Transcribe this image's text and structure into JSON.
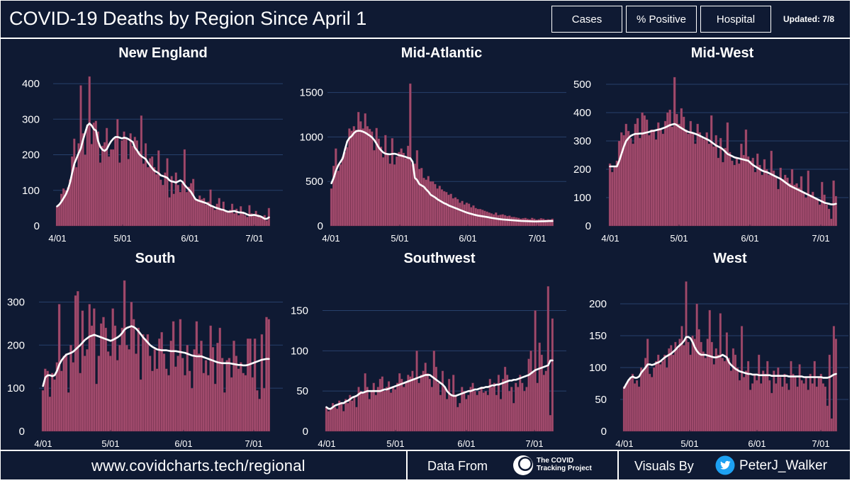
{
  "header": {
    "title": "COVID-19 Deaths by Region Since April 1",
    "nav": [
      "Cases",
      "% Positive",
      "Hospital"
    ],
    "updated": "Updated: 7/8"
  },
  "footer": {
    "url": "www.covidcharts.tech/regional",
    "data_from_label": "Data From",
    "source_logo_text": [
      "The COVID",
      "Tracking Project"
    ],
    "visuals_by_label": "Visuals By",
    "handle": "PeterJ_Walker"
  },
  "colors": {
    "background": "#0f1a33",
    "bar": "#a04a6c",
    "bar_stroke": "#6c2c48",
    "avg_line": "#ffffff",
    "grid": "#27406b",
    "text": "#ffffff",
    "twitter": "#1da1f2"
  },
  "chart_data": [
    {
      "type": "bar",
      "title": "New England",
      "x": [
        "4/01",
        "5/01",
        "6/01",
        "7/01"
      ],
      "ylim": [
        0,
        430
      ],
      "yticks": [
        0,
        100,
        200,
        300,
        400
      ],
      "bars": [
        55,
        62,
        90,
        105,
        100,
        108,
        130,
        195,
        245,
        165,
        232,
        395,
        260,
        200,
        285,
        420,
        230,
        290,
        295,
        265,
        178,
        225,
        235,
        275,
        195,
        215,
        215,
        248,
        300,
        178,
        240,
        265,
        245,
        188,
        260,
        225,
        250,
        240,
        210,
        310,
        175,
        232,
        165,
        190,
        195,
        165,
        145,
        212,
        130,
        115,
        150,
        190,
        80,
        140,
        90,
        150,
        115,
        95,
        120,
        215,
        95,
        110,
        120,
        132,
        75,
        75,
        85,
        75,
        78,
        60,
        68,
        102,
        52,
        45,
        62,
        78,
        48,
        68,
        40,
        42,
        45,
        62,
        35,
        48,
        30,
        55,
        40,
        30,
        25,
        58,
        35,
        28,
        42,
        32,
        25,
        22,
        30,
        15,
        50
      ],
      "avg": [
        55,
        60,
        68,
        78,
        88,
        102,
        122,
        150,
        175,
        190,
        205,
        218,
        242,
        262,
        282,
        288,
        282,
        272,
        268,
        238,
        222,
        214,
        211,
        216,
        228,
        238,
        245,
        250,
        250,
        248,
        246,
        248,
        247,
        244,
        240,
        236,
        220,
        212,
        202,
        196,
        192,
        188,
        178,
        170,
        162,
        155,
        152,
        148,
        142,
        140,
        138,
        135,
        128,
        125,
        124,
        122,
        125,
        128,
        124,
        115,
        108,
        102,
        95,
        85,
        75,
        72,
        70,
        68,
        66,
        64,
        61,
        57,
        55,
        52,
        50,
        48,
        46,
        45,
        42,
        40,
        40,
        41,
        42,
        40,
        38,
        38,
        37,
        35,
        32,
        30,
        30,
        31,
        30,
        28,
        27,
        24,
        20,
        20,
        24
      ]
    },
    {
      "type": "bar",
      "title": "Mid-Atlantic",
      "x": [
        "4/01",
        "5/01",
        "6/01",
        "7/01"
      ],
      "ylim": [
        0,
        1720
      ],
      "yticks": [
        0,
        500,
        1000,
        1500
      ],
      "bars": [
        420,
        675,
        870,
        620,
        690,
        775,
        830,
        885,
        1095,
        1070,
        1120,
        1080,
        1280,
        1175,
        1095,
        1265,
        1120,
        1090,
        1060,
        850,
        1100,
        980,
        890,
        770,
        1020,
        800,
        700,
        985,
        690,
        780,
        830,
        870,
        820,
        760,
        900,
        1600,
        690,
        700,
        850,
        640,
        650,
        540,
        520,
        560,
        500,
        500,
        470,
        420,
        450,
        410,
        390,
        380,
        350,
        360,
        310,
        320,
        300,
        260,
        280,
        240,
        260,
        250,
        210,
        230,
        200,
        190,
        190,
        180,
        170,
        160,
        150,
        140,
        130,
        150,
        120,
        125,
        130,
        120,
        110,
        115,
        100,
        100,
        95,
        90,
        80,
        85,
        90,
        80,
        75,
        90,
        80,
        70,
        75,
        85,
        80,
        70,
        75,
        70,
        80
      ],
      "avg": [
        480,
        540,
        620,
        680,
        720,
        760,
        860,
        950,
        990,
        1010,
        1045,
        1065,
        1070,
        1068,
        1060,
        1048,
        1032,
        1015,
        995,
        965,
        925,
        880,
        850,
        825,
        812,
        808,
        805,
        810,
        812,
        805,
        795,
        790,
        782,
        775,
        765,
        760,
        720,
        540,
        515,
        470,
        455,
        440,
        410,
        385,
        350,
        335,
        320,
        300,
        285,
        270,
        255,
        245,
        230,
        220,
        210,
        200,
        190,
        180,
        170,
        160,
        150,
        142,
        135,
        128,
        122,
        116,
        112,
        108,
        104,
        100,
        95,
        90,
        86,
        82,
        78,
        75,
        72,
        70,
        68,
        66,
        64,
        62,
        60,
        58,
        56,
        55,
        54,
        53,
        52,
        51,
        50,
        50,
        51,
        52,
        52,
        53,
        54,
        56,
        55
      ]
    },
    {
      "type": "bar",
      "title": "Mid-West",
      "x": [
        "4/01",
        "5/01",
        "6/01",
        "7/01"
      ],
      "ylim": [
        0,
        540
      ],
      "yticks": [
        0,
        100,
        200,
        300,
        400,
        500
      ],
      "bars": [
        220,
        190,
        210,
        230,
        300,
        330,
        320,
        360,
        335,
        310,
        290,
        360,
        380,
        310,
        400,
        390,
        375,
        320,
        340,
        335,
        305,
        365,
        345,
        325,
        370,
        400,
        410,
        350,
        525,
        395,
        360,
        415,
        385,
        340,
        325,
        370,
        330,
        290,
        360,
        330,
        310,
        305,
        330,
        290,
        390,
        280,
        320,
        240,
        310,
        225,
        275,
        365,
        260,
        230,
        215,
        240,
        220,
        290,
        250,
        340,
        245,
        230,
        240,
        190,
        255,
        215,
        180,
        235,
        200,
        180,
        265,
        195,
        175,
        130,
        205,
        165,
        180,
        170,
        150,
        200,
        145,
        150,
        135,
        175,
        120,
        100,
        195,
        110,
        120,
        100,
        95,
        75,
        155,
        110,
        75,
        60,
        25,
        160,
        105
      ],
      "avg": [
        210,
        210,
        210,
        210,
        230,
        255,
        280,
        300,
        310,
        318,
        322,
        325,
        325,
        326,
        326,
        328,
        330,
        332,
        335,
        336,
        338,
        340,
        342,
        345,
        348,
        352,
        356,
        358,
        360,
        356,
        350,
        345,
        340,
        335,
        332,
        330,
        328,
        325,
        322,
        318,
        314,
        310,
        306,
        302,
        296,
        290,
        284,
        280,
        276,
        270,
        262,
        254,
        250,
        246,
        242,
        240,
        238,
        236,
        234,
        232,
        230,
        222,
        215,
        210,
        205,
        200,
        195,
        192,
        190,
        186,
        182,
        178,
        174,
        170,
        166,
        160,
        154,
        148,
        142,
        138,
        134,
        130,
        126,
        122,
        118,
        114,
        110,
        106,
        102,
        98,
        94,
        90,
        86,
        82,
        80,
        78,
        76,
        76,
        78
      ]
    },
    {
      "type": "bar",
      "title": "South",
      "x": [
        "4/01",
        "5/01",
        "6/01",
        "7/01"
      ],
      "ylim": [
        0,
        355
      ],
      "yticks": [
        0,
        100,
        200,
        300
      ],
      "bars": [
        95,
        145,
        140,
        80,
        135,
        120,
        160,
        295,
        140,
        175,
        180,
        90,
        200,
        160,
        315,
        325,
        135,
        280,
        175,
        190,
        295,
        245,
        285,
        110,
        175,
        250,
        265,
        240,
        185,
        175,
        285,
        245,
        165,
        200,
        240,
        350,
        200,
        190,
        300,
        260,
        180,
        240,
        120,
        225,
        215,
        225,
        175,
        140,
        190,
        145,
        215,
        230,
        180,
        145,
        130,
        210,
        255,
        150,
        175,
        260,
        170,
        130,
        200,
        140,
        100,
        190,
        255,
        180,
        210,
        135,
        165,
        130,
        245,
        195,
        110,
        205,
        240,
        170,
        90,
        165,
        170,
        125,
        210,
        175,
        145,
        160,
        135,
        130,
        215,
        215,
        125,
        215,
        95,
        75,
        225,
        100,
        265,
        260
      ],
      "avg": [
        105,
        125,
        130,
        130,
        128,
        130,
        140,
        155,
        165,
        172,
        178,
        180,
        182,
        185,
        190,
        195,
        200,
        206,
        212,
        216,
        220,
        222,
        224,
        222,
        220,
        218,
        216,
        214,
        212,
        210,
        212,
        215,
        218,
        222,
        228,
        236,
        240,
        242,
        244,
        242,
        238,
        232,
        225,
        218,
        212,
        206,
        200,
        196,
        193,
        190,
        189,
        188,
        188,
        188,
        187,
        186,
        186,
        186,
        185,
        184,
        183,
        182,
        180,
        178,
        176,
        175,
        174,
        174,
        174,
        172,
        170,
        168,
        166,
        164,
        162,
        160,
        159,
        158,
        158,
        158,
        158,
        157,
        156,
        155,
        154,
        154,
        153,
        153,
        154,
        156,
        158,
        160,
        162,
        164,
        166,
        167,
        168,
        168
      ]
    },
    {
      "type": "bar",
      "title": "Southwest",
      "x": [
        "4/01",
        "5/01",
        "6/01",
        "7/01"
      ],
      "ylim": [
        0,
        190
      ],
      "yticks": [
        0,
        50,
        100,
        150
      ],
      "bars": [
        30,
        25,
        28,
        35,
        30,
        28,
        38,
        35,
        25,
        40,
        35,
        45,
        38,
        42,
        30,
        55,
        50,
        48,
        72,
        55,
        40,
        50,
        60,
        45,
        55,
        65,
        68,
        50,
        55,
        62,
        48,
        55,
        52,
        60,
        72,
        65,
        55,
        60,
        70,
        68,
        75,
        65,
        100,
        60,
        70,
        75,
        85,
        72,
        65,
        55,
        100,
        80,
        60,
        45,
        75,
        55,
        40,
        65,
        45,
        70,
        45,
        30,
        35,
        55,
        50,
        40,
        45,
        55,
        60,
        50,
        45,
        50,
        55,
        48,
        50,
        45,
        65,
        55,
        60,
        45,
        70,
        40,
        65,
        80,
        70,
        50,
        55,
        35,
        60,
        55,
        70,
        60,
        50,
        55,
        90,
        100,
        75,
        150,
        60,
        110,
        95,
        70,
        75,
        180,
        20,
        140
      ],
      "avg": [
        30,
        28,
        28,
        30,
        32,
        33,
        34,
        35,
        35,
        37,
        38,
        40,
        42,
        43,
        44,
        46,
        48,
        48,
        49,
        50,
        50,
        50,
        50,
        50,
        50,
        50,
        51,
        52,
        52,
        53,
        54,
        55,
        56,
        57,
        58,
        59,
        60,
        61,
        62,
        63,
        64,
        65,
        66,
        67,
        68,
        69,
        70,
        70,
        70,
        68,
        66,
        64,
        62,
        60,
        58,
        55,
        50,
        47,
        45,
        44,
        44,
        45,
        46,
        47,
        48,
        49,
        50,
        50,
        51,
        52,
        52,
        53,
        54,
        54,
        55,
        55,
        56,
        57,
        57,
        58,
        58,
        59,
        60,
        61,
        62,
        63,
        63,
        64,
        64,
        65,
        66,
        67,
        68,
        69,
        70,
        72,
        74,
        76,
        77,
        78,
        79,
        80,
        81,
        82,
        88,
        88
      ]
    },
    {
      "type": "bar",
      "title": "West",
      "x": [
        "4/01",
        "5/01",
        "6/01",
        "7/01"
      ],
      "ylim": [
        0,
        240
      ],
      "yticks": [
        0,
        50,
        100,
        150,
        200
      ],
      "bars": [
        70,
        75,
        80,
        85,
        90,
        75,
        80,
        70,
        100,
        95,
        115,
        145,
        90,
        85,
        100,
        110,
        120,
        105,
        110,
        120,
        100,
        130,
        135,
        120,
        140,
        130,
        145,
        165,
        135,
        235,
        140,
        120,
        150,
        145,
        200,
        160,
        140,
        125,
        115,
        145,
        190,
        140,
        105,
        130,
        120,
        185,
        115,
        110,
        155,
        115,
        95,
        130,
        120,
        100,
        80,
        165,
        85,
        95,
        110,
        65,
        75,
        90,
        80,
        120,
        75,
        95,
        90,
        110,
        80,
        60,
        95,
        75,
        100,
        85,
        70,
        90,
        75,
        65,
        110,
        90,
        85,
        70,
        105,
        80,
        75,
        85,
        65,
        90,
        75,
        110,
        70,
        85,
        90,
        75,
        70,
        40,
        120,
        20,
        165,
        145
      ],
      "avg": [
        68,
        74,
        80,
        84,
        86,
        84,
        84,
        86,
        92,
        96,
        100,
        105,
        105,
        104,
        105,
        107,
        108,
        110,
        113,
        116,
        118,
        120,
        122,
        125,
        128,
        132,
        135,
        138,
        142,
        148,
        148,
        146,
        140,
        132,
        126,
        122,
        120,
        120,
        120,
        119,
        118,
        117,
        116,
        116,
        117,
        118,
        120,
        118,
        116,
        108,
        104,
        101,
        98,
        96,
        94,
        93,
        92,
        91,
        90,
        90,
        89,
        89,
        89,
        88,
        88,
        88,
        88,
        88,
        88,
        87,
        87,
        87,
        87,
        87,
        87,
        87,
        87,
        86,
        86,
        86,
        86,
        86,
        86,
        86,
        85,
        85,
        85,
        85,
        85,
        85,
        85,
        85,
        85,
        84,
        84,
        84,
        85,
        87,
        89,
        90
      ]
    }
  ]
}
